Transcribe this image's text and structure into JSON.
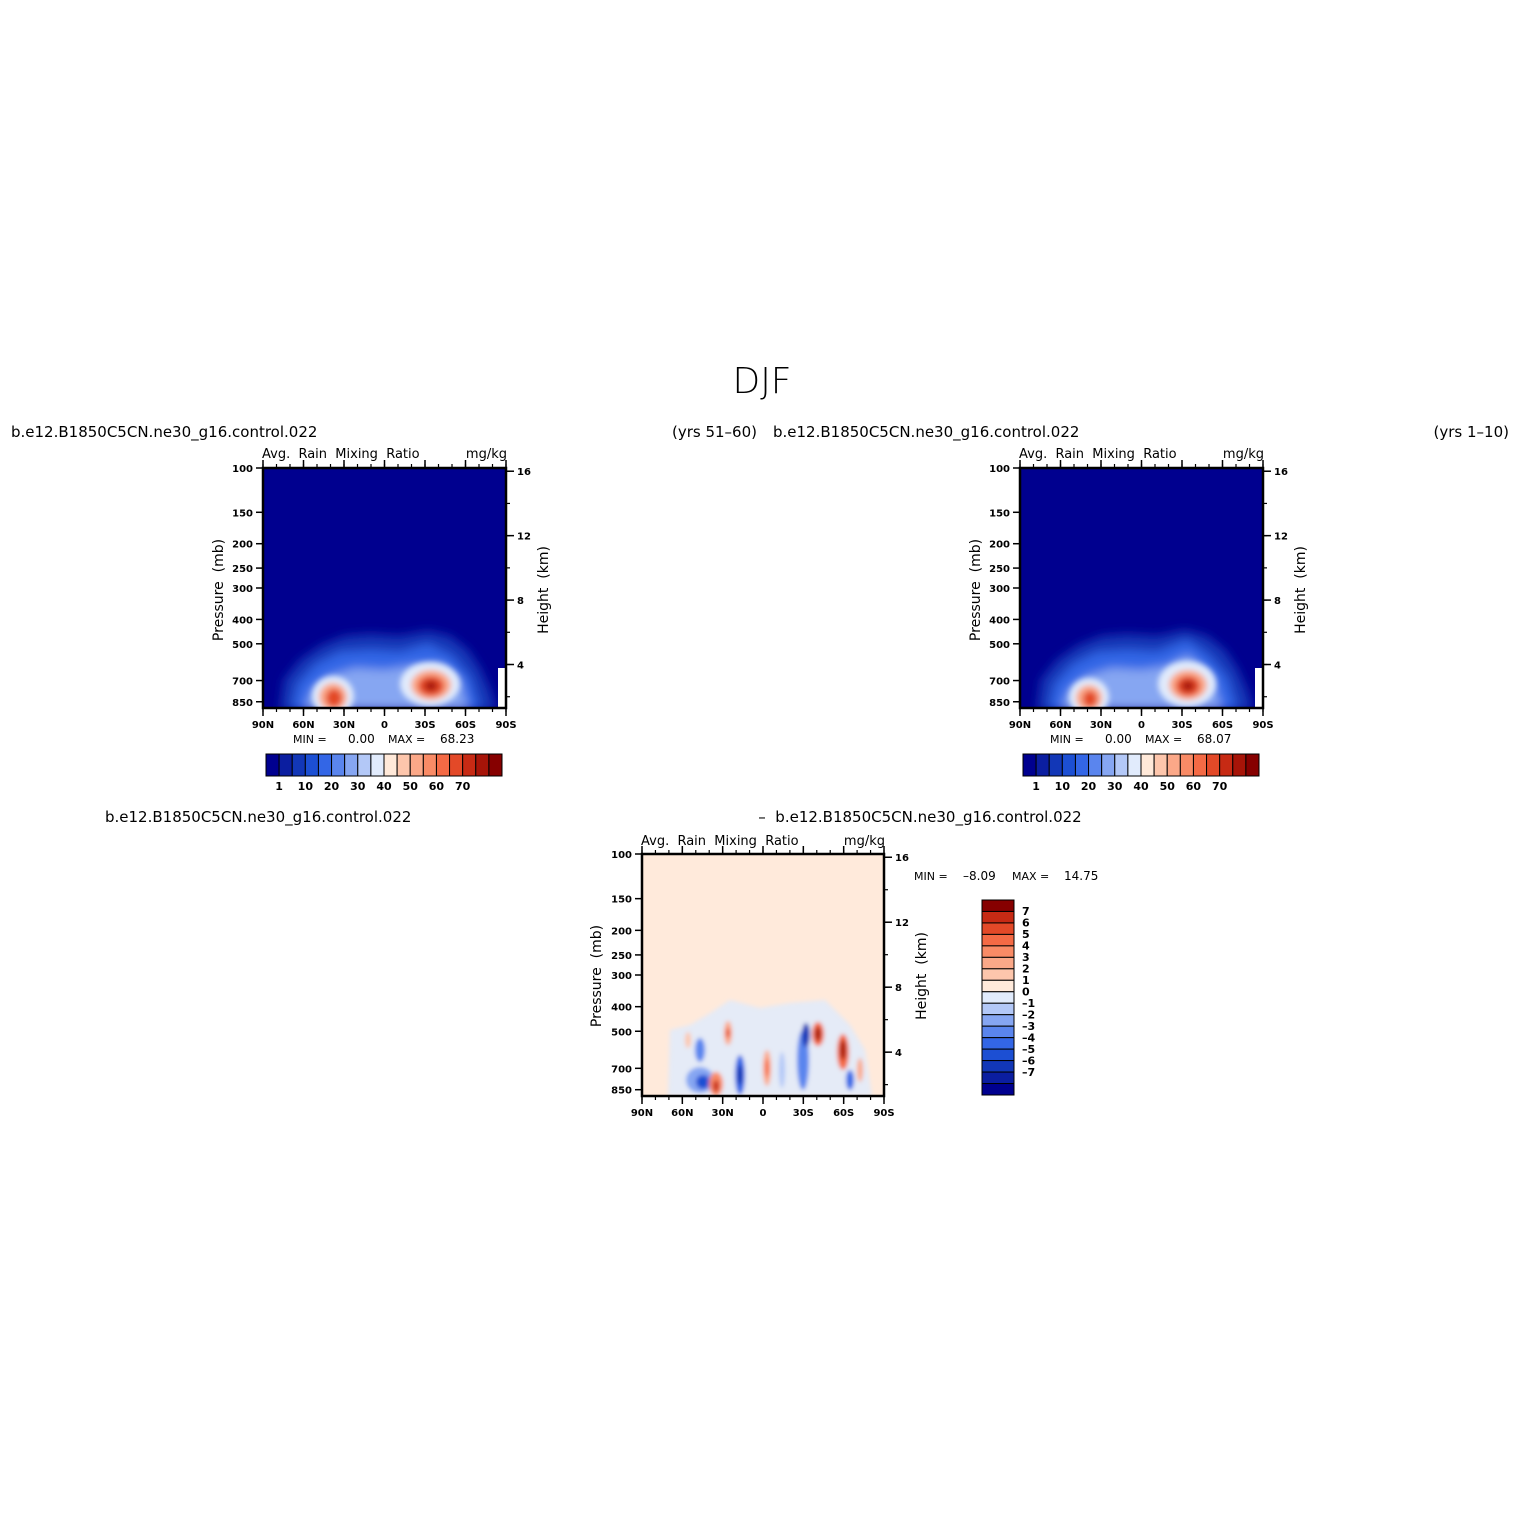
{
  "figure": {
    "title": "DJF"
  },
  "colors": {
    "abs_levels": [
      "#00008f",
      "#0b1ea0",
      "#1237b7",
      "#1c4fd3",
      "#3366e6",
      "#5a85ee",
      "#86a6f2",
      "#b3c8f7",
      "#e1ebfc",
      "#ffe9d9",
      "#fdc6ac",
      "#fba888",
      "#f98b66",
      "#f46a45",
      "#e34928",
      "#c72a14",
      "#a71408",
      "#860000"
    ],
    "diff_levels": [
      "#00008f",
      "#0b1ea0",
      "#1237b7",
      "#1c4fd3",
      "#3366e6",
      "#5a85ee",
      "#86a6f2",
      "#b3c8f7",
      "#e1ebfc",
      "#ffeadb",
      "#fdc6ac",
      "#fba888",
      "#f98b66",
      "#f46a45",
      "#e34928",
      "#c72a14",
      "#860000"
    ]
  },
  "chart_data": [
    {
      "type": "heatmap",
      "name": "top-left",
      "left_title": "b.e12.B1850C5CN.ne30_g16.control.022",
      "right_title": "(yrs 51–60)",
      "center_string": "Avg.  Rain  Mixing  Ratio",
      "units_string": "mg/kg",
      "ylabel": "Pressure  (mb)",
      "ylabel_right": "Height  (km)",
      "x_ticks": [
        "90N",
        "60N",
        "30N",
        "0",
        "30S",
        "60S",
        "90S"
      ],
      "y_ticks": [
        "100",
        "150",
        "200",
        "250",
        "300",
        "400",
        "500",
        "700",
        "850"
      ],
      "y_ticks_right": [
        "16",
        "12",
        "8",
        "4"
      ],
      "min_label": "MIN =",
      "min_value": "0.00",
      "max_label": "MAX =",
      "max_value": "68.23",
      "colorbar_labels": [
        "1",
        "10",
        "20",
        "30",
        "40",
        "50",
        "60",
        "70"
      ],
      "min": 0.0,
      "max": 68.23
    },
    {
      "type": "heatmap",
      "name": "top-right",
      "left_title": "b.e12.B1850C5CN.ne30_g16.control.022",
      "right_title": "(yrs 1–10)",
      "center_string": "Avg.  Rain  Mixing  Ratio",
      "units_string": "mg/kg",
      "ylabel": "Pressure  (mb)",
      "ylabel_right": "Height  (km)",
      "x_ticks": [
        "90N",
        "60N",
        "30N",
        "0",
        "30S",
        "60S",
        "90S"
      ],
      "y_ticks": [
        "100",
        "150",
        "200",
        "250",
        "300",
        "400",
        "500",
        "700",
        "850"
      ],
      "y_ticks_right": [
        "16",
        "12",
        "8",
        "4"
      ],
      "min_label": "MIN =",
      "min_value": "0.00",
      "max_label": "MAX =",
      "max_value": "68.07",
      "colorbar_labels": [
        "1",
        "10",
        "20",
        "30",
        "40",
        "50",
        "60",
        "70"
      ],
      "min": 0.0,
      "max": 68.07
    },
    {
      "type": "heatmap",
      "name": "difference",
      "left_title": "b.e12.B1850C5CN.ne30_g16.control.022",
      "center_title": "–  b.e12.B1850C5CN.ne30_g16.control.022",
      "center_string": "Avg.  Rain  Mixing  Ratio",
      "units_string": "mg/kg",
      "ylabel": "Pressure  (mb)",
      "ylabel_right": "Height  (km)",
      "x_ticks": [
        "90N",
        "60N",
        "30N",
        "0",
        "30S",
        "60S",
        "90S"
      ],
      "y_ticks": [
        "100",
        "150",
        "200",
        "250",
        "300",
        "400",
        "500",
        "700",
        "850"
      ],
      "y_ticks_right": [
        "16",
        "12",
        "8",
        "4"
      ],
      "min_label": "MIN =",
      "min_value": "–8.09",
      "max_label": "MAX =",
      "max_value": "14.75",
      "colorbar_labels": [
        "7",
        "6",
        "5",
        "4",
        "3",
        "2",
        "1",
        "0",
        "–1",
        "–2",
        "–3",
        "–4",
        "–5",
        "–6",
        "–7"
      ],
      "min": -8.09,
      "max": 14.75
    }
  ]
}
